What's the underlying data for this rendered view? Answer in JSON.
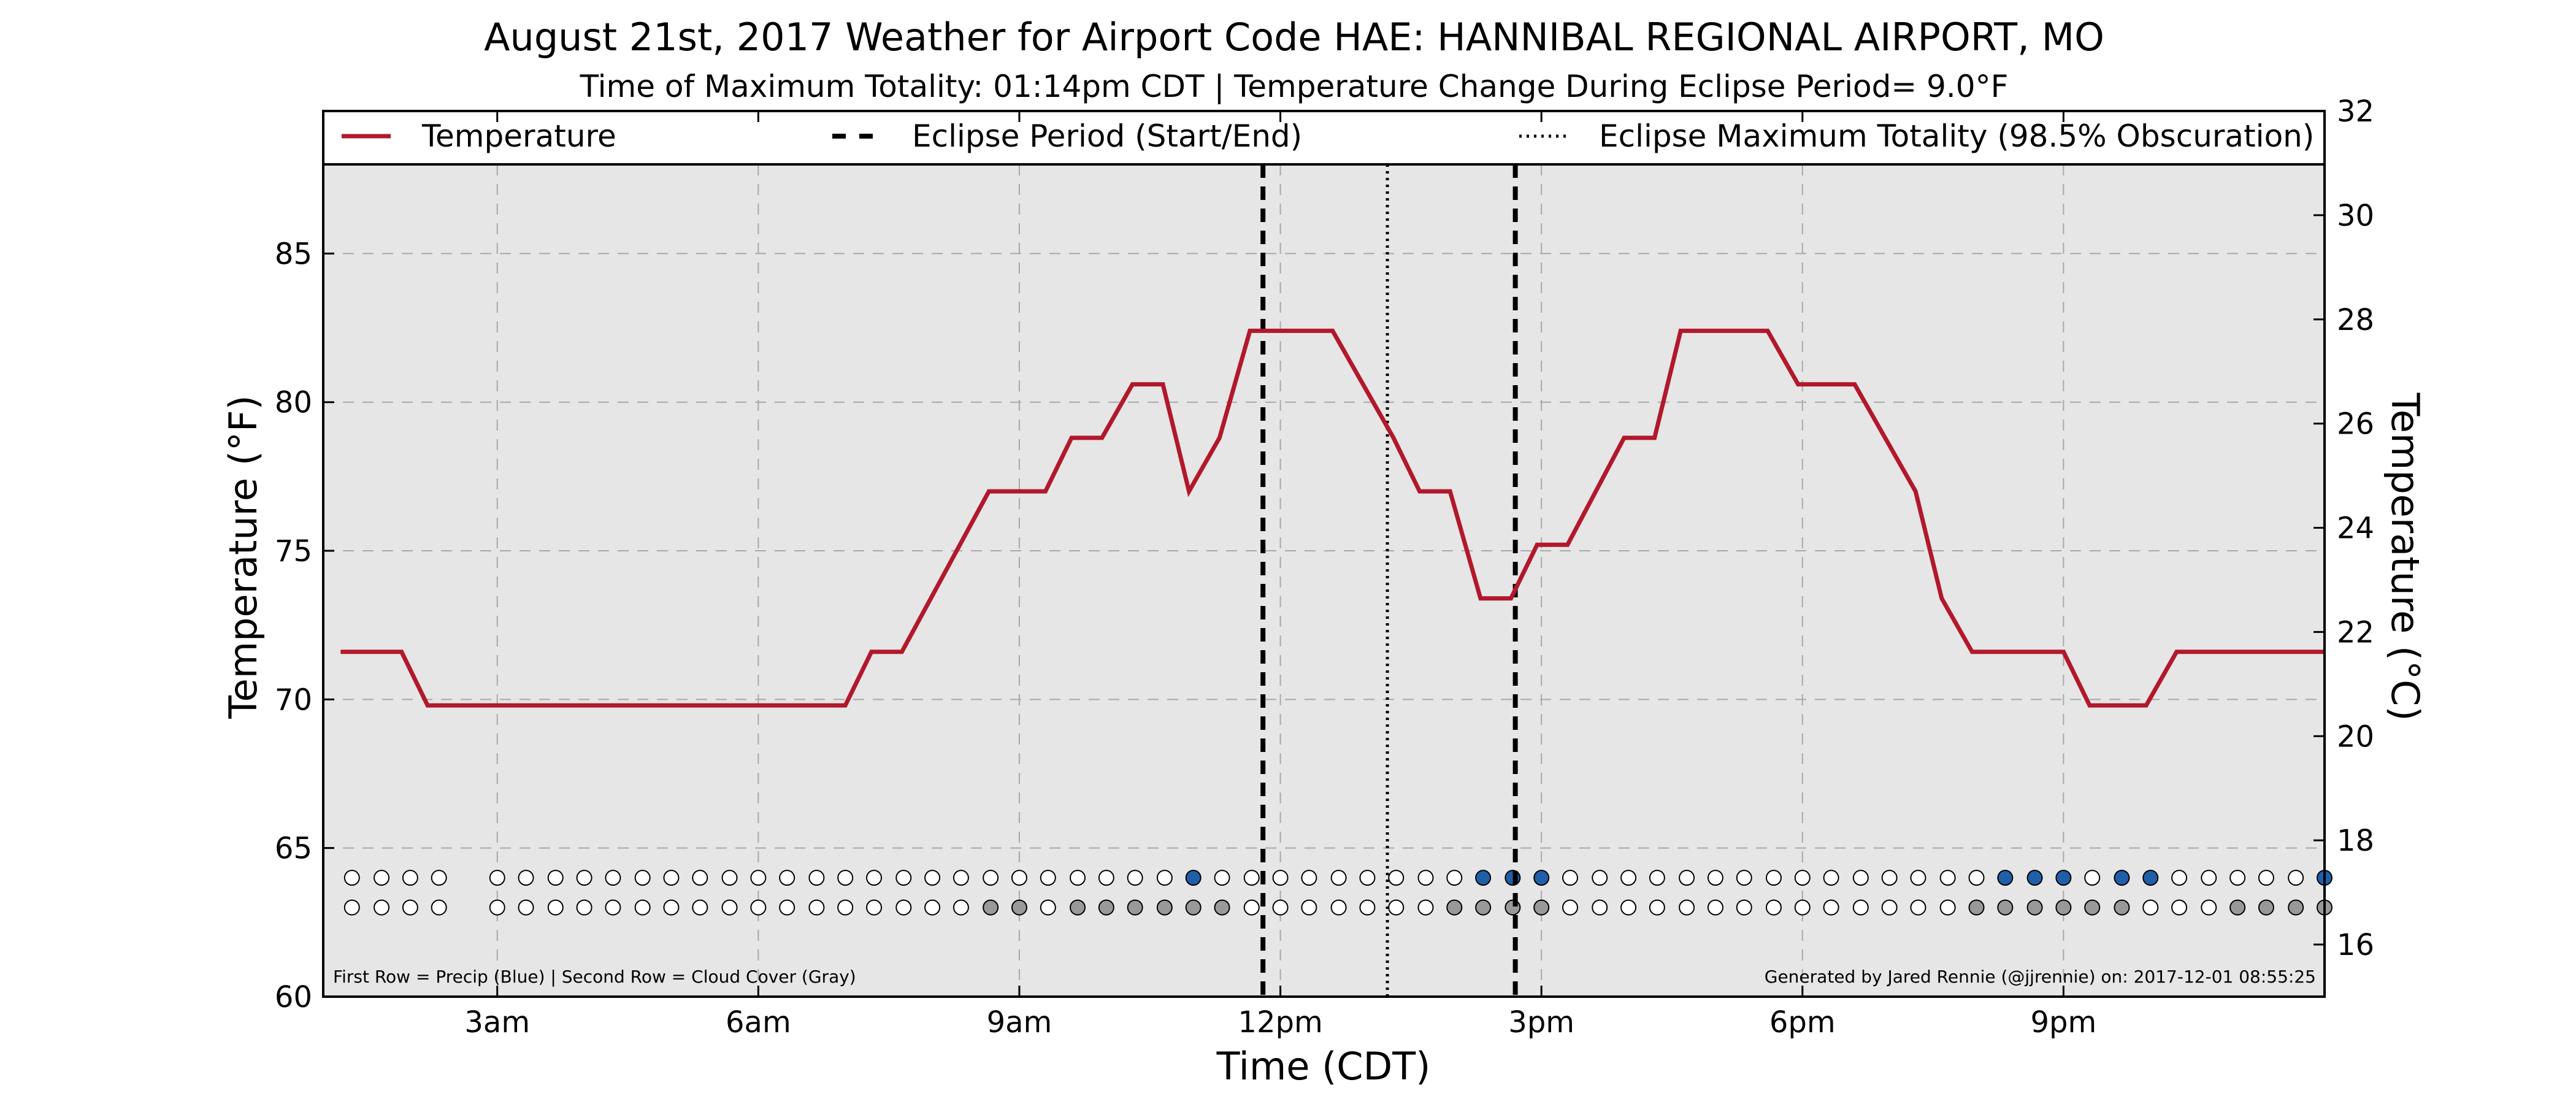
{
  "title": "August 21st, 2017 Weather for Airport Code HAE: HANNIBAL REGIONAL AIRPORT, MO",
  "subtitle": "Time of Maximum Totality: 01:14pm CDT | Temperature Change During Eclipse Period= 9.0°F",
  "footnote_left": "First Row = Precip (Blue) | Second Row = Cloud Cover (Gray)",
  "footnote_right": "Generated by Jared Rennie (@jjrennie) on: 2017-12-01 08:55:25",
  "colors": {
    "temperature": "#b2182b",
    "plot_bg": "#e6e6e6",
    "precip": "#1f5fa8",
    "cloud": "#999999",
    "empty_marker": "#ffffff"
  },
  "chart_data": {
    "type": "line",
    "xlabel": "Time (CDT)",
    "ylabel": "Temperature (°F)",
    "ylabel_right": "Temperature (°C)",
    "x_unit": "hours after midnight CDT",
    "xlim": [
      1.0,
      24.0
    ],
    "ylim": [
      60,
      88
    ],
    "ylim_right": [
      15,
      32
    ],
    "xticks": [
      {
        "value": 3,
        "label": "3am"
      },
      {
        "value": 6,
        "label": "6am"
      },
      {
        "value": 9,
        "label": "9am"
      },
      {
        "value": 12,
        "label": "12pm"
      },
      {
        "value": 15,
        "label": "3pm"
      },
      {
        "value": 18,
        "label": "6pm"
      },
      {
        "value": 21,
        "label": "9pm"
      }
    ],
    "yticks": [
      60,
      65,
      70,
      75,
      80,
      85
    ],
    "yticks_right": [
      16,
      18,
      20,
      22,
      24,
      26,
      28,
      30,
      32
    ],
    "grid": true,
    "legend": {
      "position": "top",
      "entries": [
        {
          "label": "Temperature",
          "style": "solid"
        },
        {
          "label": "Eclipse Period (Start/End)",
          "style": "dashed"
        },
        {
          "label": "Eclipse Maximum Totality (98.5% Obscuration)",
          "style": "dotted"
        }
      ]
    },
    "series": [
      {
        "name": "Temperature",
        "points": [
          [
            1.2,
            71.6
          ],
          [
            1.9,
            71.6
          ],
          [
            2.2,
            69.8
          ],
          [
            7.0,
            69.8
          ],
          [
            7.3,
            71.6
          ],
          [
            7.65,
            71.6
          ],
          [
            8.65,
            77.0
          ],
          [
            9.3,
            77.0
          ],
          [
            9.6,
            78.8
          ],
          [
            9.95,
            78.8
          ],
          [
            10.3,
            80.6
          ],
          [
            10.65,
            80.6
          ],
          [
            10.95,
            77.0
          ],
          [
            11.3,
            78.8
          ],
          [
            11.65,
            82.4
          ],
          [
            12.6,
            82.4
          ],
          [
            13.3,
            78.8
          ],
          [
            13.6,
            77.0
          ],
          [
            13.95,
            77.0
          ],
          [
            14.3,
            73.4
          ],
          [
            14.65,
            73.4
          ],
          [
            14.95,
            75.2
          ],
          [
            15.3,
            75.2
          ],
          [
            15.95,
            78.8
          ],
          [
            16.3,
            78.8
          ],
          [
            16.6,
            82.4
          ],
          [
            17.6,
            82.4
          ],
          [
            17.95,
            80.6
          ],
          [
            18.6,
            80.6
          ],
          [
            19.3,
            77.0
          ],
          [
            19.6,
            73.4
          ],
          [
            19.95,
            71.6
          ],
          [
            21.0,
            71.6
          ],
          [
            21.3,
            69.8
          ],
          [
            21.95,
            69.8
          ],
          [
            22.3,
            71.6
          ],
          [
            24.0,
            71.6
          ]
        ]
      }
    ],
    "eclipse_start": 11.8,
    "eclipse_end": 14.7,
    "eclipse_max": 13.23,
    "precip_row_value": 64.0,
    "cloud_row_value": 63.0,
    "observation_times": [
      1.33,
      1.67,
      2.0,
      2.33,
      3.0,
      3.33,
      3.67,
      4.0,
      4.33,
      4.67,
      5.0,
      5.33,
      5.67,
      6.0,
      6.33,
      6.67,
      7.0,
      7.33,
      7.67,
      8.0,
      8.33,
      8.67,
      9.0,
      9.33,
      9.67,
      10.0,
      10.33,
      10.67,
      11.0,
      11.33,
      11.67,
      12.0,
      12.33,
      12.67,
      13.0,
      13.33,
      13.67,
      14.0,
      14.33,
      14.67,
      15.0,
      15.33,
      15.67,
      16.0,
      16.33,
      16.67,
      17.0,
      17.33,
      17.67,
      18.0,
      18.33,
      18.67,
      19.0,
      19.33,
      19.67,
      20.0,
      20.33,
      20.67,
      21.0,
      21.33,
      21.67,
      22.0,
      22.33,
      22.67,
      23.0,
      23.33,
      23.67,
      24.0
    ],
    "precip": [
      0,
      0,
      0,
      0,
      0,
      0,
      0,
      0,
      0,
      0,
      0,
      0,
      0,
      0,
      0,
      0,
      0,
      0,
      0,
      0,
      0,
      0,
      0,
      0,
      0,
      0,
      0,
      0,
      1,
      0,
      0,
      0,
      0,
      0,
      0,
      0,
      0,
      0,
      1,
      1,
      1,
      0,
      0,
      0,
      0,
      0,
      0,
      0,
      0,
      0,
      0,
      0,
      0,
      0,
      0,
      0,
      1,
      1,
      1,
      0,
      1,
      1,
      0,
      0,
      0,
      0,
      0,
      1,
      1
    ],
    "cloud": [
      0,
      0,
      0,
      0,
      0,
      0,
      0,
      0,
      0,
      0,
      0,
      0,
      0,
      0,
      0,
      0,
      0,
      0,
      0,
      0,
      0,
      1,
      1,
      0,
      1,
      1,
      1,
      1,
      1,
      1,
      0,
      0,
      0,
      0,
      0,
      0,
      0,
      1,
      1,
      1,
      1,
      0,
      0,
      0,
      0,
      0,
      0,
      0,
      0,
      0,
      0,
      0,
      0,
      0,
      0,
      1,
      1,
      1,
      1,
      1,
      1,
      0,
      0,
      0,
      1,
      1,
      1,
      1,
      1
    ]
  }
}
